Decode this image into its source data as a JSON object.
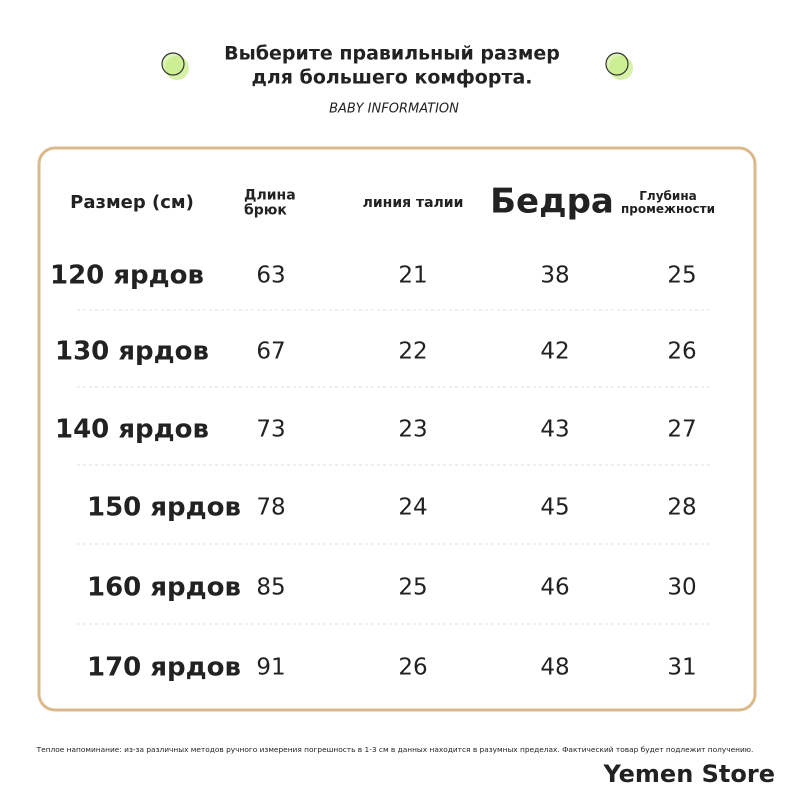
{
  "header": {
    "title": [
      "Выберите правильный размер",
      "для большего комфорта."
    ],
    "subtitle": "BABY INFORMATION"
  },
  "table": {
    "headers": [
      [
        "Размер (см)"
      ],
      [
        "Длина",
        "брюк"
      ],
      [
        "линия талии"
      ],
      [
        "Бедра"
      ],
      [
        "Глубина",
        "промежности"
      ]
    ],
    "rows": [
      [
        "120 ярдов",
        63,
        21,
        38,
        25
      ],
      [
        "130 ярдов",
        67,
        22,
        42,
        26
      ],
      [
        "140 ярдов",
        73,
        23,
        43,
        27
      ],
      [
        "150 ярдов",
        78,
        24,
        45,
        28
      ],
      [
        "160 ярдов",
        85,
        25,
        46,
        30
      ],
      [
        "170 ярдов",
        91,
        26,
        48,
        31
      ]
    ]
  },
  "footer": {
    "note": "Теплое напоминание:  из-за различных методов ручного измерения погрешность в 1-3 см в данных находится в разумных пределах. Фактический товар будет подлежит получению.",
    "watermark": "Yemen Store"
  }
}
